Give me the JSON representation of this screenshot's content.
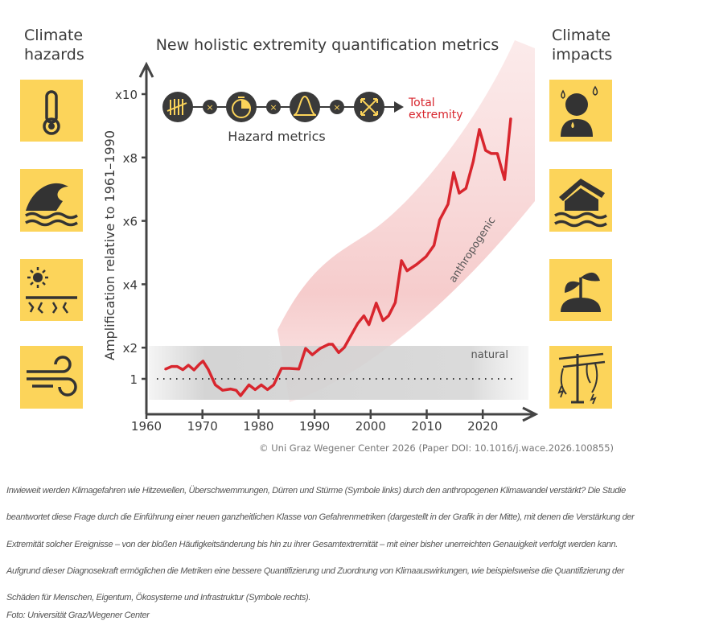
{
  "left_header": [
    "Climate",
    "hazards"
  ],
  "right_header": [
    "Climate",
    "impacts"
  ],
  "hazard_icons": [
    "thermometer-icon",
    "wave-icon",
    "drought-icon",
    "wind-icon"
  ],
  "impact_icons": [
    "person-sweating-icon",
    "flooded-house-icon",
    "wilting-plant-icon",
    "damaged-power-line-icon"
  ],
  "metrics": {
    "label": "Hazard metrics",
    "icons": [
      "tally-icon",
      "stopwatch-icon",
      "distribution-icon",
      "expand-arrows-icon"
    ],
    "multiply": "×",
    "result": [
      "Total",
      "extremity"
    ]
  },
  "credit": "© Uni Graz Wegener Center 2026 (Paper DOI: 10.1016/j.wace.2026.100855)",
  "colors": {
    "accent": "#d8262e",
    "icon_bg": "#fcd45a",
    "dark": "#3a3a3a",
    "band": "#f7c9c9",
    "natural": "#d3d3d3"
  },
  "chart_data": {
    "type": "line",
    "title": "New holistic extremity quantification metrics",
    "ylabel": "Amplification relative to 1961–1990",
    "xlabel": "",
    "xlim": [
      1960,
      2028
    ],
    "ylim": [
      0,
      11
    ],
    "xticks": [
      1960,
      1970,
      1980,
      1990,
      2000,
      2010,
      2020
    ],
    "yticks": [
      {
        "v": 1,
        "label": "1"
      },
      {
        "v": 2,
        "label": "x2"
      },
      {
        "v": 4,
        "label": "x4"
      },
      {
        "v": 6,
        "label": "x6"
      },
      {
        "v": 8,
        "label": "x8"
      },
      {
        "v": 10,
        "label": "x10"
      }
    ],
    "annotations": {
      "natural": "natural",
      "anthropogenic": "anthropogenic"
    },
    "natural_range": [
      0.35,
      2.0
    ],
    "series": [
      {
        "name": "Total extremity",
        "x": [
          1963.3,
          1964.5,
          1965.5,
          1966.5,
          1967.5,
          1968.5,
          1969.5,
          1970.1,
          1971,
          1972.3,
          1973.6,
          1975,
          1976,
          1976.8,
          1978.3,
          1979.4,
          1980.5,
          1981.6,
          1982.7,
          1984.1,
          1985.5,
          1987.2,
          1988.4,
          1989.6,
          1991,
          1992.5,
          1993.2,
          1994.3,
          1995.3,
          1997.7,
          1998.8,
          1999.7,
          2001,
          2002.2,
          2003.2,
          2004.4,
          2005.5,
          2006.5,
          2008.2,
          2009.9,
          2011.3,
          2012.3,
          2013.8,
          2014.8,
          2015.8,
          2017,
          2018.3,
          2019.4,
          2020.5,
          2021.5,
          2022.6,
          2023.9,
          2025
        ],
        "values": [
          1.29,
          1.38,
          1.38,
          1.28,
          1.42,
          1.27,
          1.46,
          1.55,
          1.3,
          0.8,
          0.63,
          0.67,
          0.63,
          0.46,
          0.8,
          0.65,
          0.8,
          0.65,
          0.8,
          1.32,
          1.32,
          1.3,
          1.95,
          1.75,
          1.95,
          2.08,
          2.08,
          1.82,
          1.98,
          2.74,
          2.98,
          2.7,
          3.38,
          2.83,
          2.98,
          3.4,
          4.72,
          4.4,
          4.6,
          4.85,
          5.2,
          6.0,
          6.5,
          7.5,
          6.85,
          7.0,
          7.85,
          8.86,
          8.2,
          8.1,
          8.1,
          7.28,
          9.22
        ]
      }
    ]
  },
  "caption": [
    "Inwieweit werden Klimagefahren wie Hitzewellen, Überschwemmungen, Dürren und Stürme (Symbole links) durch den anthropogenen Klimawandel verstärkt? Die Studie",
    "beantwortet diese Frage durch die Einführung einer neuen ganzheitlichen Klasse von Gefahrenmetriken (dargestellt in der Grafik in der Mitte), mit denen die Verstärkung der",
    "Extremität solcher Ereignisse – von der bloßen Häufigkeitsänderung bis hin zu ihrer Gesamtextremität – mit einer bisher unerreichten Genauigkeit verfolgt werden kann.",
    "Aufgrund dieser Diagnosekraft ermöglichen die Metriken eine bessere Quantifizierung und Zuordnung von Klimaauswirkungen, wie beispielsweise die Quantifizierung der",
    "Schäden für Menschen, Eigentum, Ökosysteme und Infrastruktur (Symbole rechts)."
  ],
  "photo_credit": "Foto: Universität Graz/Wegener Center"
}
